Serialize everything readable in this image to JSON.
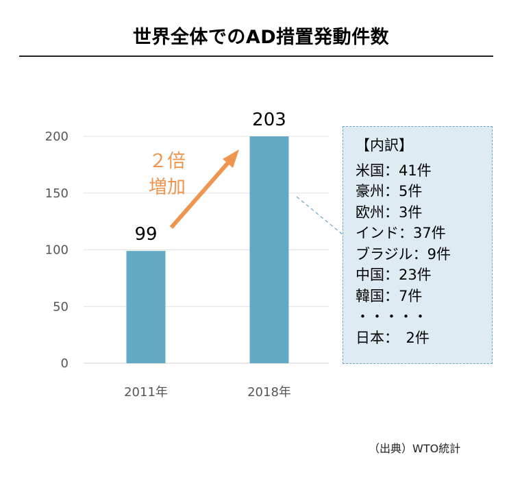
{
  "title": "世界全体でのAD措置発動件数",
  "chart_data": {
    "type": "bar",
    "categories": [
      "2011年",
      "2018年"
    ],
    "values": [
      99,
      203
    ],
    "title": "世界全体でのAD措置発動件数",
    "xlabel": "",
    "ylabel": "",
    "ylim": [
      0,
      200
    ],
    "yticks": [
      0,
      50,
      100,
      150,
      200
    ],
    "bar_color": "#62a9c4",
    "grid": true,
    "annotation": {
      "line1": "２倍",
      "line2": "増加",
      "color": "#ee9650"
    }
  },
  "breakdown": {
    "title": "【内訳】",
    "items": [
      "米国：41件",
      "豪州：5件",
      "欧州：3件",
      "インド：37件",
      "ブラジル：9件",
      "中国：23件",
      "韓国：7件",
      "・・・・・",
      "日本：　2件"
    ]
  },
  "source": "（出典）WTO統計"
}
